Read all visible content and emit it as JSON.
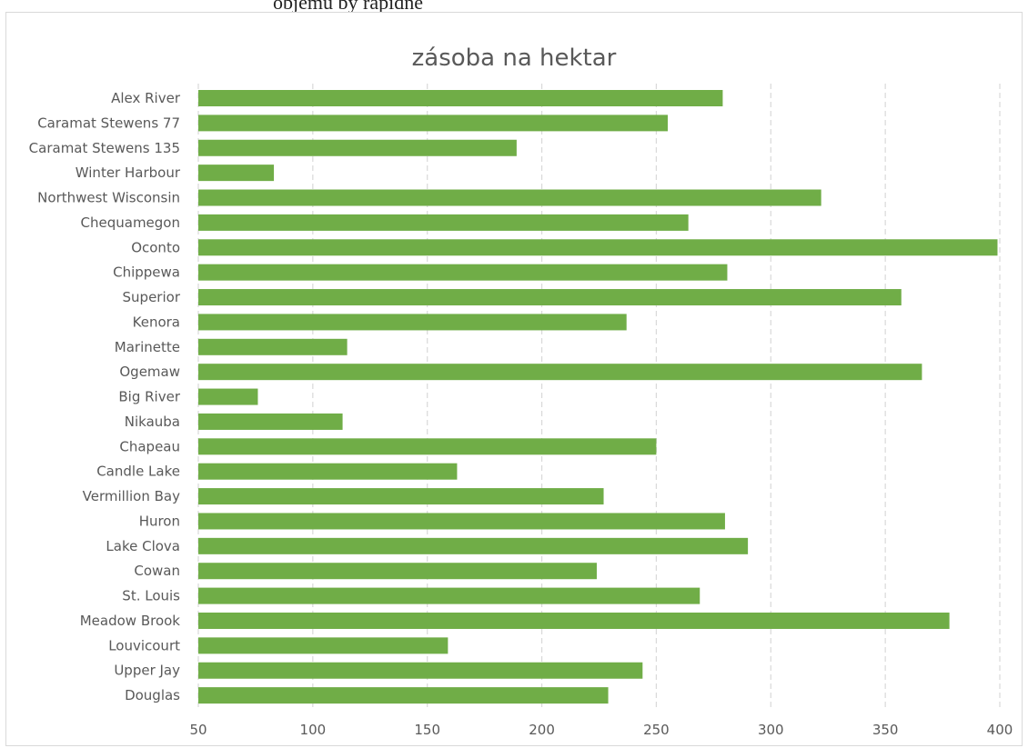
{
  "page": {
    "top_text": "objemu by rapidne"
  },
  "chart_data": {
    "type": "bar",
    "orientation": "horizontal",
    "title": "zásoba na hektar",
    "xlabel": "",
    "ylabel": "",
    "xlim": [
      50,
      400
    ],
    "x_ticks": [
      "50",
      "100",
      "150",
      "200",
      "250",
      "300",
      "350",
      "400"
    ],
    "grid": "vertical dashed",
    "bar_color": "#70AD47",
    "categories": [
      "Alex River",
      "Caramat Stewens 77",
      "Caramat Stewens 135",
      "Winter Harbour",
      "Northwest Wisconsin",
      "Chequamegon",
      "Oconto",
      "Chippewa",
      "Superior",
      "Kenora",
      "Marinette",
      "Ogemaw",
      "Big River",
      "Nikauba",
      "Chapeau",
      "Candle Lake",
      "Vermillion Bay",
      "Huron",
      "Lake Clova",
      "Cowan",
      "St. Louis",
      "Meadow Brook",
      "Louvicourt",
      "Upper Jay",
      "Douglas"
    ],
    "values": [
      279,
      255,
      189,
      83,
      322,
      264,
      399,
      281,
      357,
      237,
      115,
      366,
      76,
      113,
      250,
      163,
      227,
      280,
      290,
      224,
      269,
      378,
      159,
      244,
      229
    ]
  }
}
